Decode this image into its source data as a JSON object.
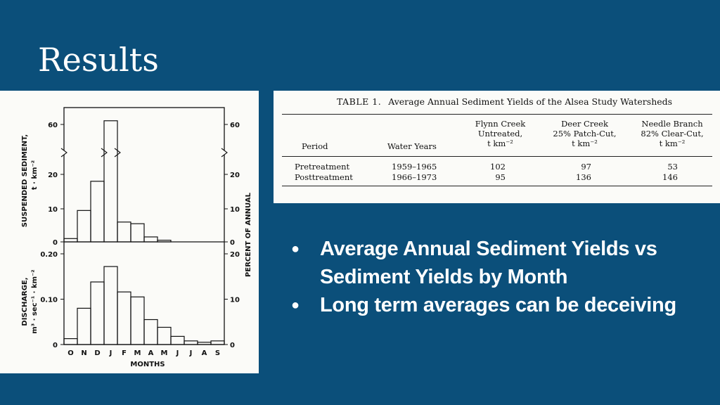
{
  "slide": {
    "title": "Results"
  },
  "figure": {
    "months": [
      "O",
      "N",
      "D",
      "J",
      "F",
      "M",
      "A",
      "M",
      "J",
      "J",
      "A",
      "S"
    ],
    "x_label": "MONTHS",
    "right_label": "PERCENT OF ANNUAL",
    "sediment": {
      "y_label_line1": "SUSPENDED SEDIMENT,",
      "y_label_line2": "t · km⁻²",
      "left_ticks": [
        "60",
        "20",
        "10",
        "0"
      ],
      "right_ticks": [
        "60",
        "20",
        "10",
        "0"
      ],
      "values": [
        1,
        9.5,
        18,
        63,
        6,
        5.5,
        1.5,
        0.5,
        0,
        0,
        0,
        0
      ]
    },
    "discharge": {
      "y_label_line1": "DISCHARGE,",
      "y_label_line2": "m³ · sec⁻¹ · km⁻²",
      "left_ticks": [
        "0.20",
        "0.10",
        "0"
      ],
      "right_ticks": [
        "20",
        "10",
        "0"
      ],
      "values": [
        0.013,
        0.08,
        0.138,
        0.172,
        0.116,
        0.105,
        0.055,
        0.038,
        0.018,
        0.008,
        0.005,
        0.008
      ]
    }
  },
  "table": {
    "caption_tag": "TABLE 1.",
    "caption": "Average Annual Sediment Yields of the Alsea Study Watersheds",
    "headers": {
      "period": "Period",
      "water_years": "Water Years",
      "flynn": [
        "Flynn Creek",
        "Untreated,",
        "t km⁻²"
      ],
      "deer": [
        "Deer Creek",
        "25% Patch-Cut,",
        "t km⁻²"
      ],
      "needle": [
        "Needle Branch",
        "82% Clear-Cut,",
        "t km⁻²"
      ]
    },
    "rows": [
      {
        "period": "Pretreatment",
        "years": "1959–1965",
        "flynn": "102",
        "deer": "97",
        "needle": "53"
      },
      {
        "period": "Posttreatment",
        "years": "1966–1973",
        "flynn": "95",
        "deer": "136",
        "needle": "146"
      }
    ]
  },
  "bullets": [
    "Average Annual Sediment Yields vs Sediment Yields by Month",
    "Long term averages can be deceiving"
  ],
  "bullet_glyph": "●"
}
